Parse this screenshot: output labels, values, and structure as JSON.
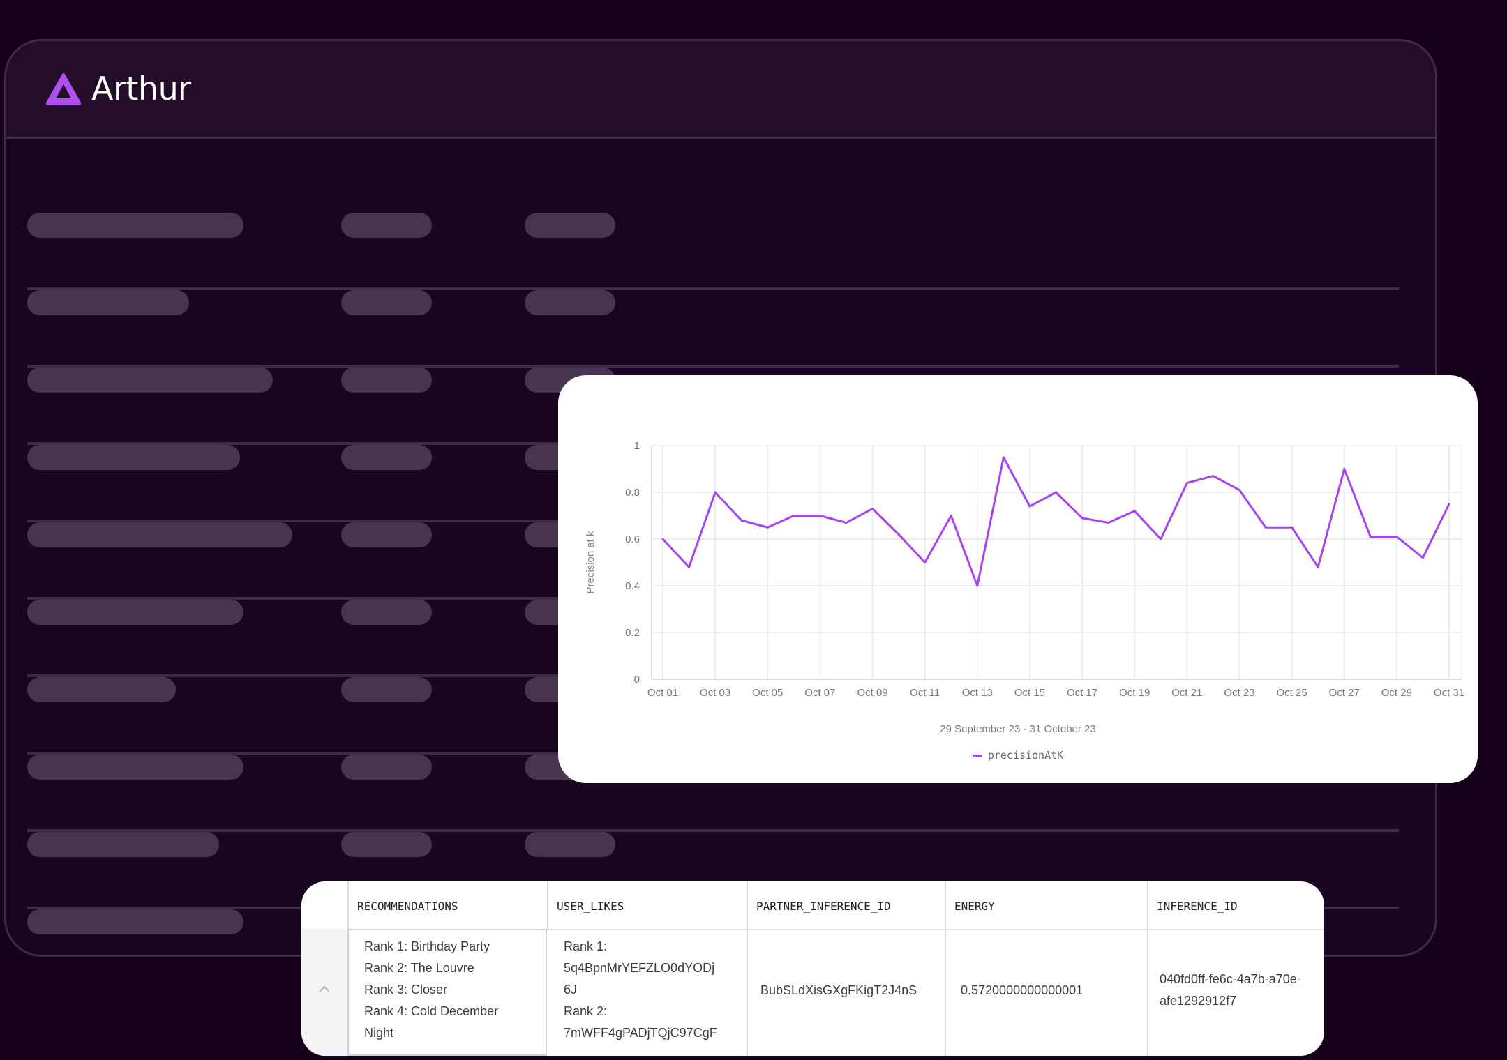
{
  "brand": {
    "name": "Arthur",
    "color": "#a744f0"
  },
  "skeleton": {
    "rows": [
      {
        "w1": 310
      },
      {
        "w1": 232
      },
      {
        "w1": 352
      },
      {
        "w1": 305
      },
      {
        "w1": 380
      },
      {
        "w1": 310
      },
      {
        "w1": 213
      },
      {
        "w1": 310
      },
      {
        "w1": 275
      },
      {
        "w1": 310
      }
    ]
  },
  "chart_data": {
    "type": "line",
    "x": [
      "Oct 01",
      "Oct 02",
      "Oct 03",
      "Oct 04",
      "Oct 05",
      "Oct 06",
      "Oct 07",
      "Oct 08",
      "Oct 09",
      "Oct 10",
      "Oct 11",
      "Oct 12",
      "Oct 13",
      "Oct 14",
      "Oct 15",
      "Oct 16",
      "Oct 17",
      "Oct 18",
      "Oct 19",
      "Oct 20",
      "Oct 21",
      "Oct 22",
      "Oct 23",
      "Oct 24",
      "Oct 25",
      "Oct 26",
      "Oct 27",
      "Oct 28",
      "Oct 29",
      "Oct 30",
      "Oct 31"
    ],
    "x_tick_labels": [
      "Oct 01",
      "Oct 03",
      "Oct 05",
      "Oct 07",
      "Oct 09",
      "Oct 11",
      "Oct 13",
      "Oct 15",
      "Oct 17",
      "Oct 19",
      "Oct 21",
      "Oct 23",
      "Oct 25",
      "Oct 27",
      "Oct 29",
      "Oct 31"
    ],
    "series": [
      {
        "name": "precisionAtK",
        "color": "#a744f0",
        "values": [
          0.6,
          0.48,
          0.8,
          0.68,
          0.65,
          0.7,
          0.7,
          0.67,
          0.73,
          0.62,
          0.5,
          0.7,
          0.4,
          0.95,
          0.74,
          0.8,
          0.69,
          0.67,
          0.72,
          0.6,
          0.84,
          0.87,
          0.81,
          0.65,
          0.65,
          0.48,
          0.9,
          0.61,
          0.61,
          0.52,
          0.75
        ]
      }
    ],
    "ylabel": "Precision at k",
    "xlabel": "29 September 23 - 31 October 23",
    "ylim": [
      0,
      1
    ],
    "y_ticks": [
      0,
      0.2,
      0.4,
      0.6,
      0.8,
      1
    ],
    "y_tick_labels": [
      "0",
      "0.2",
      "0.4",
      "0.6",
      "0.8",
      "1"
    ],
    "grid": true,
    "legend": "bottom-center"
  },
  "table": {
    "columns": [
      "RECOMMENDATIONS",
      "USER_LIKES",
      "PARTNER_INFERENCE_ID",
      "ENERGY",
      "INFERENCE_ID"
    ],
    "row": {
      "recommendations": [
        "Rank 1: Birthday Party",
        "Rank 2: The Louvre",
        "Rank 3: Closer",
        "Rank 4: Cold December",
        "Night"
      ],
      "user_likes": [
        "Rank 1:",
        "5q4BpnMrYEFZLO0dYODj",
        "6J",
        "Rank 2:",
        "7mWFF4gPADjTQjC97CgF"
      ],
      "partner_inference_id": "BubSLdXisGXgFKigT2J4nS",
      "energy": "0.5720000000000001",
      "inference_id": [
        "040fd0ff-fe6c-4a7b-a70e-",
        "afe1292912f7"
      ]
    }
  }
}
